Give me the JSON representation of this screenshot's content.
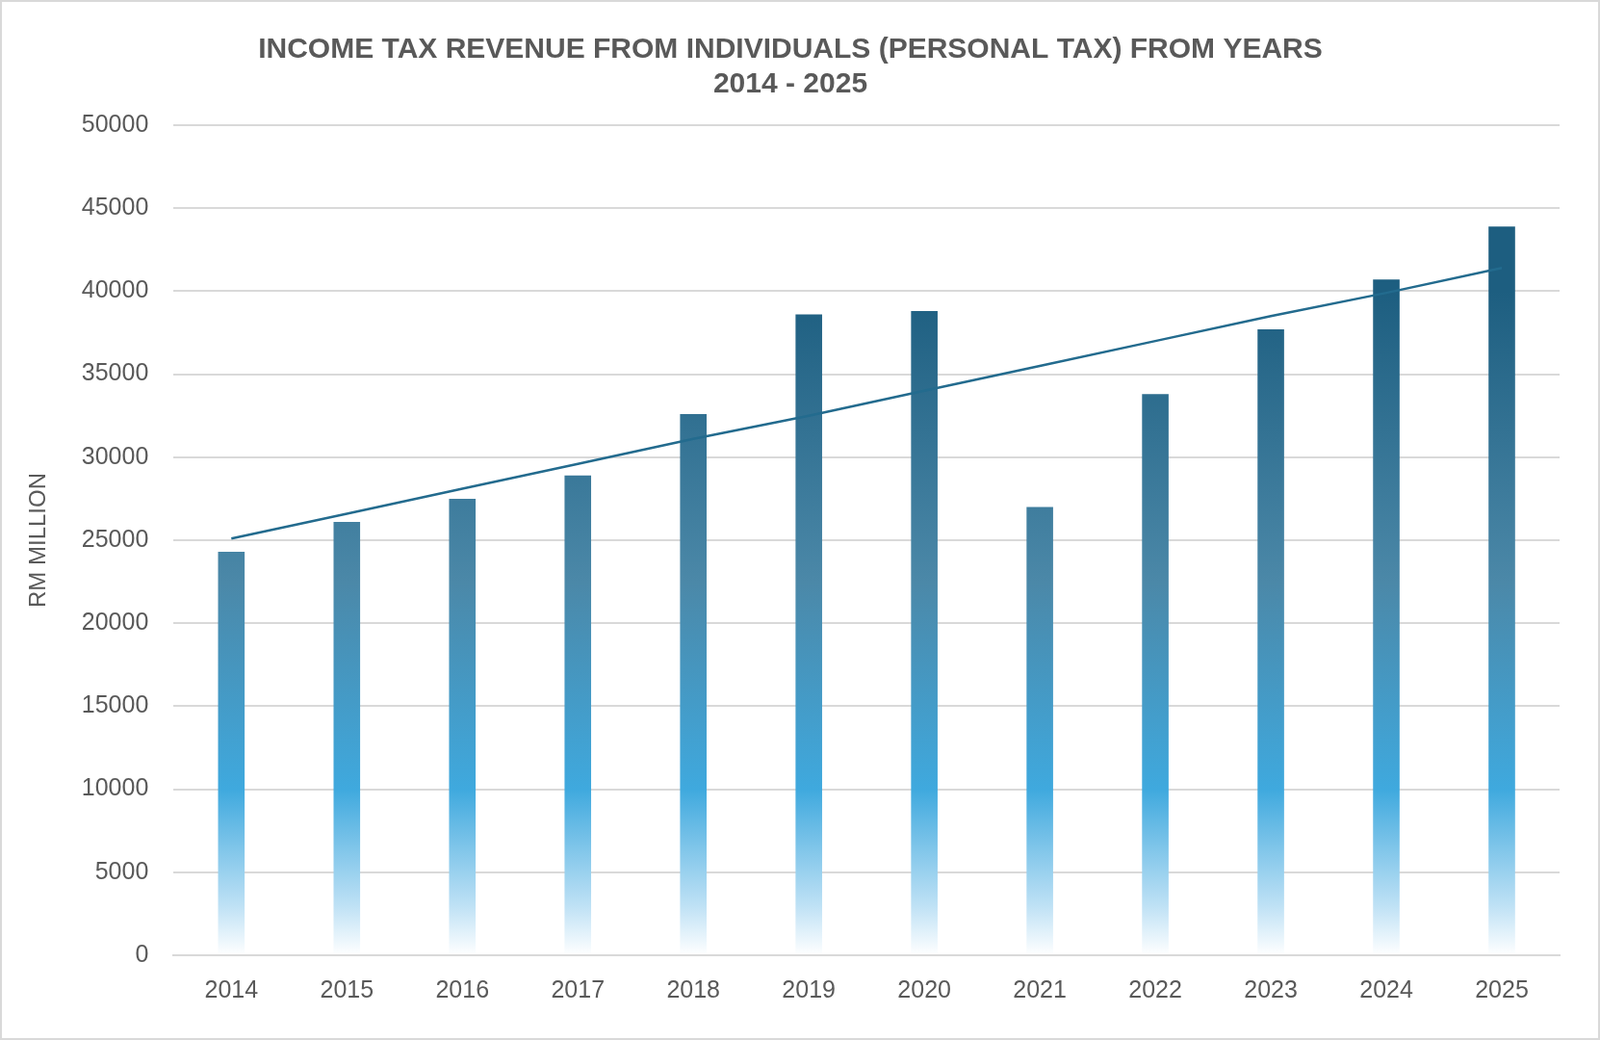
{
  "chart_data": {
    "type": "bar",
    "title": [
      "INCOME TAX REVENUE FROM INDIVIDUALS (PERSONAL TAX) FROM YEARS",
      "2014 - 2025"
    ],
    "ylabel": "RM MILLION",
    "categories": [
      "2014",
      "2015",
      "2016",
      "2017",
      "2018",
      "2019",
      "2020",
      "2021",
      "2022",
      "2023",
      "2024",
      "2025"
    ],
    "series": [
      {
        "type": "bar",
        "color": "#1d5e80",
        "values": [
          24300,
          26100,
          27500,
          28900,
          32600,
          38600,
          38800,
          27000,
          33800,
          37700,
          40700,
          43900
        ]
      },
      {
        "type": "line",
        "color": "#236b8e",
        "values": [
          25100,
          26600,
          28100,
          29600,
          31100,
          32500,
          34000,
          35500,
          37000,
          38500,
          39900,
          41400
        ]
      }
    ],
    "ylim": [
      0,
      50000
    ],
    "yticks": [
      0,
      5000,
      10000,
      15000,
      20000,
      25000,
      30000,
      35000,
      40000,
      45000,
      50000
    ],
    "grid": true
  }
}
